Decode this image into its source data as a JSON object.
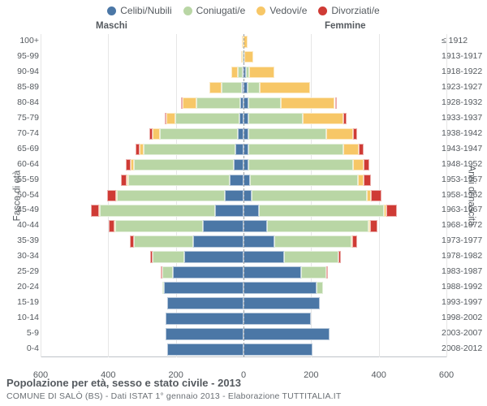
{
  "legend": {
    "items": [
      {
        "label": "Celibi/Nubili",
        "color": "#4b77a6"
      },
      {
        "label": "Coniugati/e",
        "color": "#b9d6a5"
      },
      {
        "label": "Vedovi/e",
        "color": "#f7c767"
      },
      {
        "label": "Divorziati/e",
        "color": "#cf3b35"
      }
    ]
  },
  "columns": {
    "male": "Maschi",
    "female": "Femmine"
  },
  "axes": {
    "y_left_title": "Fasce di età",
    "y_right_title": "Anni di nascita",
    "x_ticks": [
      -600,
      -400,
      -200,
      0,
      200,
      400,
      600
    ],
    "x_tick_labels": [
      "600",
      "400",
      "200",
      "0",
      "200",
      "400",
      "600"
    ],
    "x_max": 600
  },
  "colors": {
    "celibi": "#4b77a6",
    "coniugati": "#b9d6a5",
    "vedovi": "#f7c767",
    "divorziati": "#cf3b35",
    "grid": "#e6e6e6",
    "center_axis": "#9aa0a6",
    "text": "#555a5f"
  },
  "footer": {
    "line1": "Popolazione per età, sesso e stato civile - 2013",
    "line2": "COMUNE DI SALÒ (BS) - Dati ISTAT 1° gennaio 2013 - Elaborazione TUTTITALIA.IT"
  },
  "rows": [
    {
      "age": "100+",
      "birth": "≤ 1912",
      "m": {
        "c": 0,
        "co": 0,
        "v": 2,
        "d": 0
      },
      "f": {
        "c": 0,
        "co": 0,
        "v": 12,
        "d": 0
      }
    },
    {
      "age": "95-99",
      "birth": "1913-1917",
      "m": {
        "c": 0,
        "co": 2,
        "v": 5,
        "d": 0
      },
      "f": {
        "c": 3,
        "co": 0,
        "v": 25,
        "d": 0
      }
    },
    {
      "age": "90-94",
      "birth": "1918-1922",
      "m": {
        "c": 2,
        "co": 15,
        "v": 20,
        "d": 0
      },
      "f": {
        "c": 8,
        "co": 8,
        "v": 75,
        "d": 0
      }
    },
    {
      "age": "85-89",
      "birth": "1923-1927",
      "m": {
        "c": 5,
        "co": 60,
        "v": 35,
        "d": 0
      },
      "f": {
        "c": 12,
        "co": 35,
        "v": 150,
        "d": 0
      }
    },
    {
      "age": "80-84",
      "birth": "1928-1932",
      "m": {
        "c": 10,
        "co": 130,
        "v": 40,
        "d": 3
      },
      "f": {
        "c": 15,
        "co": 95,
        "v": 160,
        "d": 5
      }
    },
    {
      "age": "75-79",
      "birth": "1933-1937",
      "m": {
        "c": 12,
        "co": 190,
        "v": 25,
        "d": 5
      },
      "f": {
        "c": 15,
        "co": 160,
        "v": 120,
        "d": 10
      }
    },
    {
      "age": "70-74",
      "birth": "1938-1942",
      "m": {
        "c": 18,
        "co": 230,
        "v": 20,
        "d": 10
      },
      "f": {
        "c": 15,
        "co": 230,
        "v": 80,
        "d": 12
      }
    },
    {
      "age": "65-69",
      "birth": "1943-1947",
      "m": {
        "c": 25,
        "co": 270,
        "v": 12,
        "d": 12
      },
      "f": {
        "c": 15,
        "co": 280,
        "v": 45,
        "d": 15
      }
    },
    {
      "age": "60-64",
      "birth": "1948-1952",
      "m": {
        "c": 30,
        "co": 295,
        "v": 8,
        "d": 15
      },
      "f": {
        "c": 15,
        "co": 310,
        "v": 30,
        "d": 18
      }
    },
    {
      "age": "55-59",
      "birth": "1953-1957",
      "m": {
        "c": 40,
        "co": 300,
        "v": 5,
        "d": 18
      },
      "f": {
        "c": 18,
        "co": 320,
        "v": 18,
        "d": 22
      }
    },
    {
      "age": "50-54",
      "birth": "1958-1962",
      "m": {
        "c": 55,
        "co": 320,
        "v": 3,
        "d": 25
      },
      "f": {
        "c": 25,
        "co": 340,
        "v": 12,
        "d": 30
      }
    },
    {
      "age": "45-49",
      "birth": "1963-1967",
      "m": {
        "c": 85,
        "co": 340,
        "v": 2,
        "d": 25
      },
      "f": {
        "c": 45,
        "co": 370,
        "v": 8,
        "d": 30
      }
    },
    {
      "age": "40-44",
      "birth": "1968-1972",
      "m": {
        "c": 120,
        "co": 260,
        "v": 1,
        "d": 18
      },
      "f": {
        "c": 70,
        "co": 300,
        "v": 4,
        "d": 22
      }
    },
    {
      "age": "35-39",
      "birth": "1973-1977",
      "m": {
        "c": 150,
        "co": 175,
        "v": 0,
        "d": 10
      },
      "f": {
        "c": 90,
        "co": 230,
        "v": 2,
        "d": 15
      }
    },
    {
      "age": "30-34",
      "birth": "1978-1982",
      "m": {
        "c": 175,
        "co": 95,
        "v": 0,
        "d": 5
      },
      "f": {
        "c": 120,
        "co": 160,
        "v": 0,
        "d": 8
      }
    },
    {
      "age": "25-29",
      "birth": "1983-1987",
      "m": {
        "c": 210,
        "co": 30,
        "v": 0,
        "d": 2
      },
      "f": {
        "c": 170,
        "co": 75,
        "v": 0,
        "d": 3
      }
    },
    {
      "age": "20-24",
      "birth": "1988-1992",
      "m": {
        "c": 235,
        "co": 5,
        "v": 0,
        "d": 0
      },
      "f": {
        "c": 215,
        "co": 20,
        "v": 0,
        "d": 0
      }
    },
    {
      "age": "15-19",
      "birth": "1993-1997",
      "m": {
        "c": 225,
        "co": 0,
        "v": 0,
        "d": 0
      },
      "f": {
        "c": 225,
        "co": 0,
        "v": 0,
        "d": 0
      }
    },
    {
      "age": "10-14",
      "birth": "1998-2002",
      "m": {
        "c": 230,
        "co": 0,
        "v": 0,
        "d": 0
      },
      "f": {
        "c": 200,
        "co": 0,
        "v": 0,
        "d": 0
      }
    },
    {
      "age": "5-9",
      "birth": "2003-2007",
      "m": {
        "c": 230,
        "co": 0,
        "v": 0,
        "d": 0
      },
      "f": {
        "c": 255,
        "co": 0,
        "v": 0,
        "d": 0
      }
    },
    {
      "age": "0-4",
      "birth": "2008-2012",
      "m": {
        "c": 225,
        "co": 0,
        "v": 0,
        "d": 0
      },
      "f": {
        "c": 205,
        "co": 0,
        "v": 0,
        "d": 0
      }
    }
  ]
}
